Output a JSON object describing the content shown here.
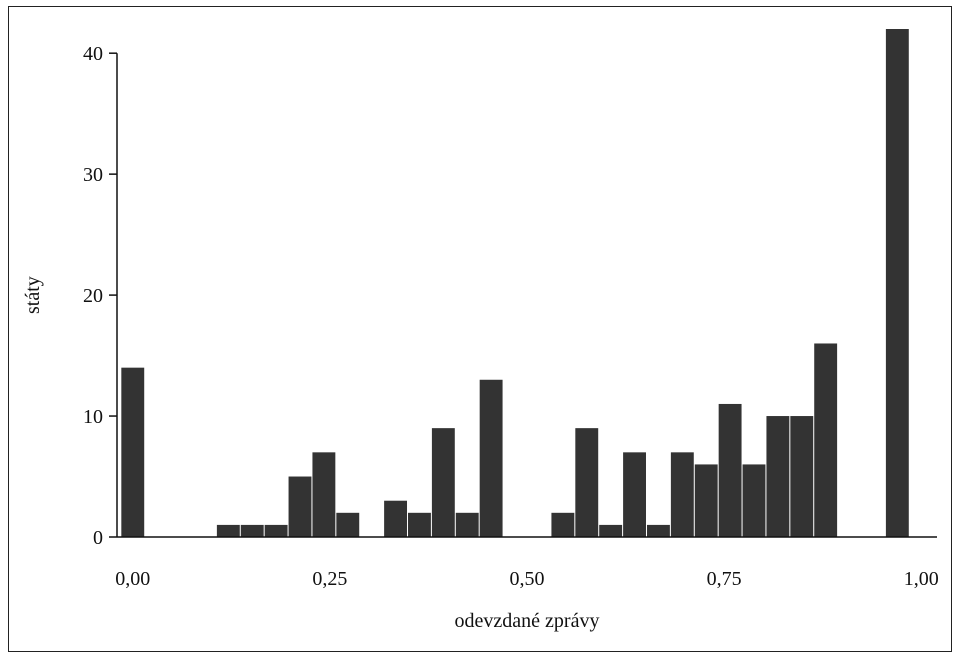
{
  "chart_data": {
    "type": "bar",
    "title": "",
    "xlabel": "odevzdané zprávy",
    "ylabel": "státy",
    "xlim": [
      -0.02,
      1.02
    ],
    "ylim": [
      0,
      42
    ],
    "x_ticks": [
      {
        "value": 0.0,
        "label": "0,00"
      },
      {
        "value": 0.25,
        "label": "0,25"
      },
      {
        "value": 0.5,
        "label": "0,50"
      },
      {
        "value": 0.75,
        "label": "0,75"
      },
      {
        "value": 1.0,
        "label": "1,00"
      }
    ],
    "y_ticks": [
      {
        "value": 0,
        "label": "0"
      },
      {
        "value": 10,
        "label": "10"
      },
      {
        "value": 20,
        "label": "20"
      },
      {
        "value": 30,
        "label": "30"
      },
      {
        "value": 40,
        "label": "40"
      }
    ],
    "bin_width": 0.0303,
    "bar_color": "#333333",
    "bins": [
      {
        "x": 0.0,
        "value": 14
      },
      {
        "x": 0.1212,
        "value": 1
      },
      {
        "x": 0.1515,
        "value": 1
      },
      {
        "x": 0.1818,
        "value": 1
      },
      {
        "x": 0.2121,
        "value": 5
      },
      {
        "x": 0.2424,
        "value": 7
      },
      {
        "x": 0.2727,
        "value": 2
      },
      {
        "x": 0.3333,
        "value": 3
      },
      {
        "x": 0.3636,
        "value": 2
      },
      {
        "x": 0.3939,
        "value": 9
      },
      {
        "x": 0.4242,
        "value": 2
      },
      {
        "x": 0.4545,
        "value": 13
      },
      {
        "x": 0.5455,
        "value": 2
      },
      {
        "x": 0.5758,
        "value": 9
      },
      {
        "x": 0.6061,
        "value": 1
      },
      {
        "x": 0.6364,
        "value": 7
      },
      {
        "x": 0.6667,
        "value": 1
      },
      {
        "x": 0.697,
        "value": 7
      },
      {
        "x": 0.7273,
        "value": 6
      },
      {
        "x": 0.7576,
        "value": 11
      },
      {
        "x": 0.7879,
        "value": 6
      },
      {
        "x": 0.8182,
        "value": 10
      },
      {
        "x": 0.8485,
        "value": 10
      },
      {
        "x": 0.8788,
        "value": 16
      },
      {
        "x": 0.9697,
        "value": 42
      }
    ]
  }
}
